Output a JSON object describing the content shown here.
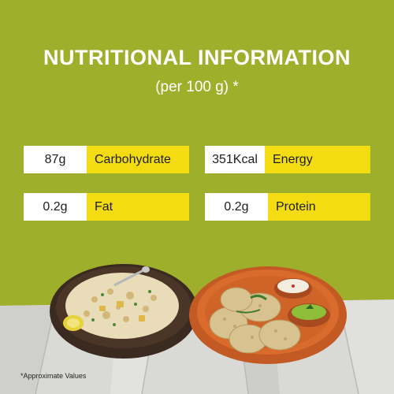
{
  "header": {
    "title": "NUTRITIONAL INFORMATION",
    "subtitle": "(per 100 g) *"
  },
  "nutrients": [
    {
      "value": "87g",
      "label": "Carbohydrate"
    },
    {
      "value": "351Kcal",
      "label": "Energy"
    },
    {
      "value": "0.2g",
      "label": "Fat"
    },
    {
      "value": "0.2g",
      "label": "Protein"
    }
  ],
  "footnote": "*Approximate Values",
  "colors": {
    "background": "#9eaf2c",
    "label_fill": "#f3dd12",
    "value_fill": "#ffffff"
  }
}
